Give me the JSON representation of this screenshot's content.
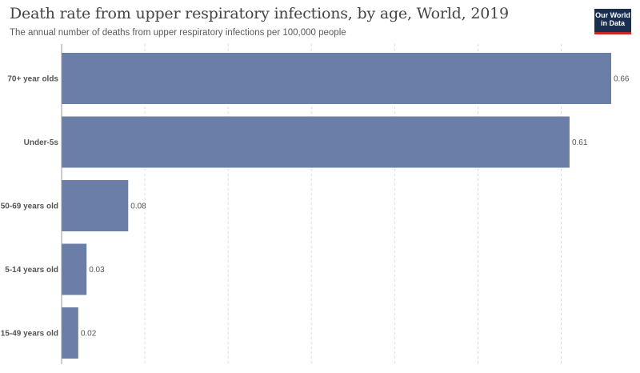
{
  "header": {
    "title": "Death rate from upper respiratory infections, by age, World, 2019",
    "subtitle": "The annual number of deaths from upper respiratory infections per 100,000 people"
  },
  "logo": {
    "line1": "Our World",
    "line2": "in Data",
    "bg_color": "#1a2f50",
    "accent_color": "#ce261e"
  },
  "chart_data": {
    "type": "bar",
    "orientation": "horizontal",
    "title": "Death rate from upper respiratory infections, by age, World, 2019",
    "subtitle": "The annual number of deaths from upper respiratory infections per 100,000 people",
    "categories": [
      "70+ year olds",
      "Under-5s",
      "50-69 years old",
      "5-14 years old",
      "15-49 years old"
    ],
    "values": [
      0.66,
      0.61,
      0.08,
      0.03,
      0.02
    ],
    "value_labels": [
      "0.66",
      "0.61",
      "0.08",
      "0.03",
      "0.02"
    ],
    "xlim": [
      0,
      0.66
    ],
    "grid": true,
    "bar_color": "#6a7ea8"
  }
}
